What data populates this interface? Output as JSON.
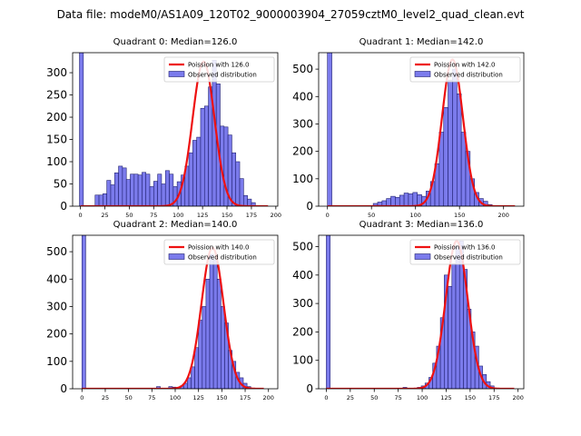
{
  "figure": {
    "suptitle": "Data file: modeM0/AS1A09_120T02_9000003904_27059cztM0_level2_quad_clean.evt"
  },
  "colors": {
    "bar_fill": "#7b7bec",
    "bar_edge": "#1f1f70",
    "curve": "#ee1111"
  },
  "chart_data": [
    {
      "type": "bar",
      "title": "Quadrant 0: Median=126.0",
      "xlim": [
        -8,
        202
      ],
      "ylim": [
        0,
        345
      ],
      "xticks": [
        0,
        25,
        50,
        75,
        100,
        125,
        150,
        175,
        200
      ],
      "yticks": [
        0,
        50,
        100,
        150,
        200,
        250,
        300
      ],
      "bin_width": 4,
      "bins": [
        {
          "x": -1,
          "value": 345
        },
        {
          "x": 15,
          "value": 25
        },
        {
          "x": 19,
          "value": 25
        },
        {
          "x": 23,
          "value": 28
        },
        {
          "x": 27,
          "value": 58
        },
        {
          "x": 31,
          "value": 48
        },
        {
          "x": 35,
          "value": 75
        },
        {
          "x": 39,
          "value": 90
        },
        {
          "x": 43,
          "value": 86
        },
        {
          "x": 47,
          "value": 60
        },
        {
          "x": 51,
          "value": 72
        },
        {
          "x": 55,
          "value": 72
        },
        {
          "x": 59,
          "value": 70
        },
        {
          "x": 63,
          "value": 76
        },
        {
          "x": 67,
          "value": 72
        },
        {
          "x": 71,
          "value": 44
        },
        {
          "x": 75,
          "value": 56
        },
        {
          "x": 79,
          "value": 72
        },
        {
          "x": 83,
          "value": 50
        },
        {
          "x": 87,
          "value": 80
        },
        {
          "x": 91,
          "value": 72
        },
        {
          "x": 95,
          "value": 44
        },
        {
          "x": 99,
          "value": 55
        },
        {
          "x": 103,
          "value": 70
        },
        {
          "x": 107,
          "value": 90
        },
        {
          "x": 111,
          "value": 120
        },
        {
          "x": 115,
          "value": 148
        },
        {
          "x": 119,
          "value": 155
        },
        {
          "x": 123,
          "value": 220
        },
        {
          "x": 127,
          "value": 225
        },
        {
          "x": 131,
          "value": 268
        },
        {
          "x": 135,
          "value": 328
        },
        {
          "x": 139,
          "value": 275
        },
        {
          "x": 143,
          "value": 180
        },
        {
          "x": 147,
          "value": 178
        },
        {
          "x": 151,
          "value": 160
        },
        {
          "x": 155,
          "value": 120
        },
        {
          "x": 159,
          "value": 100
        },
        {
          "x": 163,
          "value": 62
        },
        {
          "x": 167,
          "value": 24
        },
        {
          "x": 171,
          "value": 16
        },
        {
          "x": 175,
          "value": 8
        }
      ],
      "legend": [
        "Poission with 126.0",
        "Observed distribution"
      ],
      "legend_location": "upper right",
      "poisson": {
        "mean": 126,
        "peak": 325,
        "sigma": 11.2,
        "x_range": [
          0,
          192
        ]
      }
    },
    {
      "type": "bar",
      "title": "Quadrant 1: Median=142.0",
      "xlim": [
        -10,
        223
      ],
      "ylim": [
        0,
        560
      ],
      "xticks": [
        0,
        50,
        100,
        150,
        200
      ],
      "yticks": [
        0,
        100,
        200,
        300,
        400,
        500
      ],
      "bin_width": 5,
      "bins": [
        {
          "x": 0,
          "value": 560
        },
        {
          "x": 52,
          "value": 10
        },
        {
          "x": 57,
          "value": 15
        },
        {
          "x": 62,
          "value": 20
        },
        {
          "x": 67,
          "value": 28
        },
        {
          "x": 72,
          "value": 36
        },
        {
          "x": 77,
          "value": 32
        },
        {
          "x": 82,
          "value": 40
        },
        {
          "x": 87,
          "value": 48
        },
        {
          "x": 92,
          "value": 45
        },
        {
          "x": 97,
          "value": 50
        },
        {
          "x": 102,
          "value": 42
        },
        {
          "x": 107,
          "value": 36
        },
        {
          "x": 112,
          "value": 55
        },
        {
          "x": 117,
          "value": 90
        },
        {
          "x": 122,
          "value": 155
        },
        {
          "x": 127,
          "value": 270
        },
        {
          "x": 132,
          "value": 360
        },
        {
          "x": 137,
          "value": 460
        },
        {
          "x": 142,
          "value": 500
        },
        {
          "x": 147,
          "value": 410
        },
        {
          "x": 152,
          "value": 270
        },
        {
          "x": 157,
          "value": 200
        },
        {
          "x": 162,
          "value": 100
        },
        {
          "x": 167,
          "value": 50
        },
        {
          "x": 172,
          "value": 28
        },
        {
          "x": 177,
          "value": 18
        },
        {
          "x": 182,
          "value": 6
        }
      ],
      "legend": [
        "Poission with 142.0",
        "Observed distribution"
      ],
      "legend_location": "upper right",
      "poisson": {
        "mean": 142,
        "peak": 535,
        "sigma": 11.9,
        "x_range": [
          0,
          213
        ]
      }
    },
    {
      "type": "bar",
      "title": "Quadrant 2: Median=140.0",
      "xlim": [
        -10,
        210
      ],
      "ylim": [
        0,
        560
      ],
      "xticks": [
        0,
        25,
        50,
        75,
        100,
        125,
        150,
        175,
        200
      ],
      "yticks": [
        0,
        100,
        200,
        300,
        400,
        500
      ],
      "bin_width": 4,
      "bins": [
        {
          "x": 0,
          "value": 560
        },
        {
          "x": 80,
          "value": 8
        },
        {
          "x": 93,
          "value": 8
        },
        {
          "x": 97,
          "value": 6
        },
        {
          "x": 105,
          "value": 10
        },
        {
          "x": 109,
          "value": 20
        },
        {
          "x": 113,
          "value": 40
        },
        {
          "x": 117,
          "value": 80
        },
        {
          "x": 121,
          "value": 150
        },
        {
          "x": 125,
          "value": 250
        },
        {
          "x": 129,
          "value": 300
        },
        {
          "x": 133,
          "value": 400
        },
        {
          "x": 137,
          "value": 490
        },
        {
          "x": 141,
          "value": 470
        },
        {
          "x": 145,
          "value": 400
        },
        {
          "x": 149,
          "value": 300
        },
        {
          "x": 153,
          "value": 240
        },
        {
          "x": 157,
          "value": 140
        },
        {
          "x": 161,
          "value": 100
        },
        {
          "x": 165,
          "value": 60
        },
        {
          "x": 169,
          "value": 40
        },
        {
          "x": 173,
          "value": 20
        },
        {
          "x": 177,
          "value": 8
        }
      ],
      "legend": [
        "Poission with 140.0",
        "Observed distribution"
      ],
      "legend_location": "upper right",
      "poisson": {
        "mean": 140,
        "peak": 515,
        "sigma": 11.8,
        "x_range": [
          0,
          195
        ]
      }
    },
    {
      "type": "bar",
      "title": "Quadrant 3: Median=136.0",
      "xlim": [
        -8,
        206
      ],
      "ylim": [
        0,
        540
      ],
      "xticks": [
        0,
        25,
        50,
        75,
        100,
        125,
        150,
        175,
        200
      ],
      "yticks": [
        0,
        100,
        200,
        300,
        400,
        500
      ],
      "bin_width": 4,
      "bins": [
        {
          "x": 0,
          "value": 540
        },
        {
          "x": 80,
          "value": 5
        },
        {
          "x": 95,
          "value": 5
        },
        {
          "x": 99,
          "value": 10
        },
        {
          "x": 103,
          "value": 20
        },
        {
          "x": 107,
          "value": 40
        },
        {
          "x": 111,
          "value": 90
        },
        {
          "x": 115,
          "value": 150
        },
        {
          "x": 119,
          "value": 250
        },
        {
          "x": 123,
          "value": 400
        },
        {
          "x": 127,
          "value": 360
        },
        {
          "x": 131,
          "value": 440
        },
        {
          "x": 135,
          "value": 500
        },
        {
          "x": 139,
          "value": 520
        },
        {
          "x": 143,
          "value": 420
        },
        {
          "x": 147,
          "value": 280
        },
        {
          "x": 151,
          "value": 200
        },
        {
          "x": 155,
          "value": 150
        },
        {
          "x": 159,
          "value": 80
        },
        {
          "x": 163,
          "value": 50
        },
        {
          "x": 167,
          "value": 25
        },
        {
          "x": 171,
          "value": 10
        }
      ],
      "legend": [
        "Poission with 136.0",
        "Observed distribution"
      ],
      "legend_location": "upper right",
      "poisson": {
        "mean": 136,
        "peak": 520,
        "sigma": 11.5,
        "x_range": [
          0,
          196
        ]
      }
    }
  ]
}
